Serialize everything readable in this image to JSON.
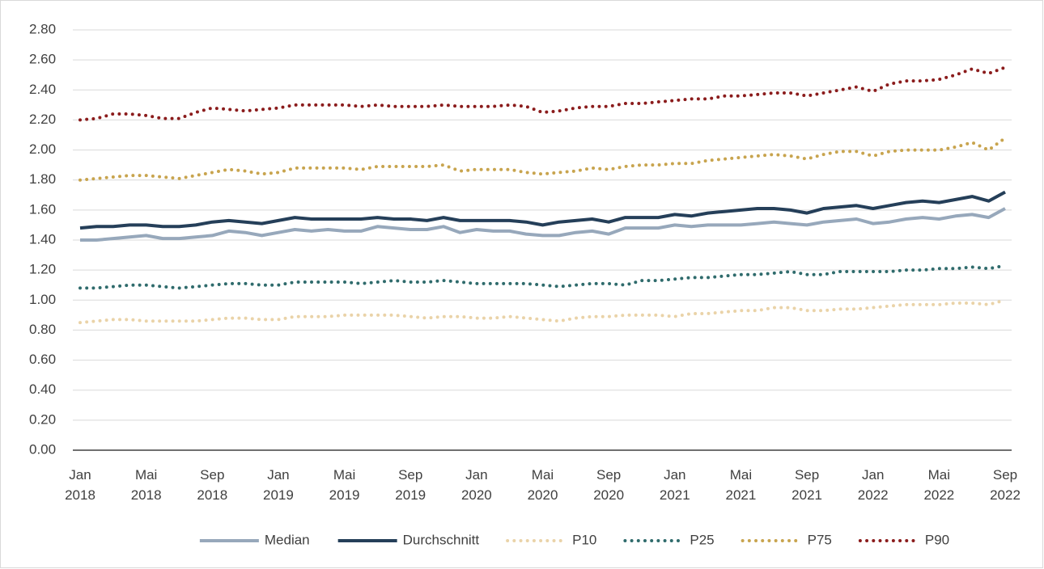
{
  "chart_data": {
    "type": "line",
    "categories": [
      "Jan 2018",
      null,
      null,
      null,
      "Mai 2018",
      null,
      null,
      null,
      "Sep 2018",
      null,
      null,
      null,
      "Jan 2019",
      null,
      null,
      null,
      "Mai 2019",
      null,
      null,
      null,
      "Sep 2019",
      null,
      null,
      null,
      "Jan 2020",
      null,
      null,
      null,
      "Mai 2020",
      null,
      null,
      null,
      "Sep 2020",
      null,
      null,
      null,
      "Jan 2021",
      null,
      null,
      null,
      "Mai 2021",
      null,
      null,
      null,
      "Sep 2021",
      null,
      null,
      null,
      "Jan 2022",
      null,
      null,
      null,
      "Mai 2022",
      null,
      null,
      null,
      "Sep 2022"
    ],
    "ylim": [
      0,
      2.8
    ],
    "yticks": [
      {
        "value": 0,
        "label": "0.00"
      },
      {
        "value": 0.2,
        "label": "0.20"
      },
      {
        "value": 0.4,
        "label": "0.40"
      },
      {
        "value": 0.6,
        "label": "0.60"
      },
      {
        "value": 0.8,
        "label": "0.80"
      },
      {
        "value": 1,
        "label": "1.00"
      },
      {
        "value": 1.2,
        "label": "1.20"
      },
      {
        "value": 1.4,
        "label": "1.40"
      },
      {
        "value": 1.6,
        "label": "1.60"
      },
      {
        "value": 1.8,
        "label": "1.80"
      },
      {
        "value": 2,
        "label": "2.00"
      },
      {
        "value": 2.2,
        "label": "2.20"
      },
      {
        "value": 2.4,
        "label": "2.40"
      },
      {
        "value": 2.6,
        "label": "2.60"
      },
      {
        "value": 2.8,
        "label": "2.80"
      }
    ],
    "grid": true,
    "legend": "bottom",
    "series": [
      {
        "name": "Median",
        "color": "#97a8bb",
        "style": "solid",
        "values": [
          1.4,
          1.4,
          1.41,
          1.42,
          1.43,
          1.41,
          1.41,
          1.42,
          1.43,
          1.46,
          1.45,
          1.43,
          1.45,
          1.47,
          1.46,
          1.47,
          1.46,
          1.46,
          1.49,
          1.48,
          1.47,
          1.47,
          1.49,
          1.45,
          1.47,
          1.46,
          1.46,
          1.44,
          1.43,
          1.43,
          1.45,
          1.46,
          1.44,
          1.48,
          1.48,
          1.48,
          1.5,
          1.49,
          1.5,
          1.5,
          1.5,
          1.51,
          1.52,
          1.51,
          1.5,
          1.52,
          1.53,
          1.54,
          1.51,
          1.52,
          1.54,
          1.55,
          1.54,
          1.56,
          1.57,
          1.55,
          1.61
        ]
      },
      {
        "name": "Durchschnitt",
        "color": "#253f59",
        "style": "solid",
        "values": [
          1.48,
          1.49,
          1.49,
          1.5,
          1.5,
          1.49,
          1.49,
          1.5,
          1.52,
          1.53,
          1.52,
          1.51,
          1.53,
          1.55,
          1.54,
          1.54,
          1.54,
          1.54,
          1.55,
          1.54,
          1.54,
          1.53,
          1.55,
          1.53,
          1.53,
          1.53,
          1.53,
          1.52,
          1.5,
          1.52,
          1.53,
          1.54,
          1.52,
          1.55,
          1.55,
          1.55,
          1.57,
          1.56,
          1.58,
          1.59,
          1.6,
          1.61,
          1.61,
          1.6,
          1.58,
          1.61,
          1.62,
          1.63,
          1.61,
          1.63,
          1.65,
          1.66,
          1.65,
          1.67,
          1.69,
          1.66,
          1.72
        ]
      },
      {
        "name": "P10",
        "color": "#ead3a8",
        "style": "dotted",
        "values": [
          0.85,
          0.86,
          0.87,
          0.87,
          0.86,
          0.86,
          0.86,
          0.86,
          0.87,
          0.88,
          0.88,
          0.87,
          0.87,
          0.89,
          0.89,
          0.89,
          0.9,
          0.9,
          0.9,
          0.9,
          0.89,
          0.88,
          0.89,
          0.89,
          0.88,
          0.88,
          0.89,
          0.88,
          0.87,
          0.86,
          0.88,
          0.89,
          0.89,
          0.9,
          0.9,
          0.9,
          0.89,
          0.91,
          0.91,
          0.92,
          0.93,
          0.93,
          0.95,
          0.95,
          0.93,
          0.93,
          0.94,
          0.94,
          0.95,
          0.96,
          0.97,
          0.97,
          0.97,
          0.98,
          0.98,
          0.97,
          1.0
        ]
      },
      {
        "name": "P25",
        "color": "#2f6b6c",
        "style": "dotted",
        "values": [
          1.08,
          1.08,
          1.09,
          1.1,
          1.1,
          1.09,
          1.08,
          1.09,
          1.1,
          1.11,
          1.11,
          1.1,
          1.1,
          1.12,
          1.12,
          1.12,
          1.12,
          1.11,
          1.12,
          1.13,
          1.12,
          1.12,
          1.13,
          1.12,
          1.11,
          1.11,
          1.11,
          1.11,
          1.1,
          1.09,
          1.1,
          1.11,
          1.11,
          1.1,
          1.13,
          1.13,
          1.14,
          1.15,
          1.15,
          1.16,
          1.17,
          1.17,
          1.18,
          1.19,
          1.17,
          1.17,
          1.19,
          1.19,
          1.19,
          1.19,
          1.2,
          1.2,
          1.21,
          1.21,
          1.22,
          1.21,
          1.23
        ]
      },
      {
        "name": "P75",
        "color": "#c8a44e",
        "style": "dotted",
        "values": [
          1.8,
          1.81,
          1.82,
          1.83,
          1.83,
          1.82,
          1.81,
          1.83,
          1.85,
          1.87,
          1.86,
          1.84,
          1.85,
          1.88,
          1.88,
          1.88,
          1.88,
          1.87,
          1.89,
          1.89,
          1.89,
          1.89,
          1.9,
          1.86,
          1.87,
          1.87,
          1.87,
          1.85,
          1.84,
          1.85,
          1.86,
          1.88,
          1.87,
          1.89,
          1.9,
          1.9,
          1.91,
          1.91,
          1.93,
          1.94,
          1.95,
          1.96,
          1.97,
          1.96,
          1.94,
          1.97,
          1.99,
          1.99,
          1.96,
          1.99,
          2.0,
          2.0,
          2.0,
          2.02,
          2.05,
          2.0,
          2.08
        ]
      },
      {
        "name": "P90",
        "color": "#8b1c1c",
        "style": "dotted",
        "values": [
          2.2,
          2.21,
          2.24,
          2.24,
          2.23,
          2.21,
          2.21,
          2.25,
          2.28,
          2.27,
          2.26,
          2.27,
          2.28,
          2.3,
          2.3,
          2.3,
          2.3,
          2.29,
          2.3,
          2.29,
          2.29,
          2.29,
          2.3,
          2.29,
          2.29,
          2.29,
          2.3,
          2.29,
          2.25,
          2.26,
          2.28,
          2.29,
          2.29,
          2.31,
          2.31,
          2.32,
          2.33,
          2.34,
          2.34,
          2.36,
          2.36,
          2.37,
          2.38,
          2.38,
          2.36,
          2.38,
          2.4,
          2.42,
          2.39,
          2.44,
          2.46,
          2.46,
          2.47,
          2.5,
          2.54,
          2.51,
          2.55
        ]
      }
    ]
  }
}
